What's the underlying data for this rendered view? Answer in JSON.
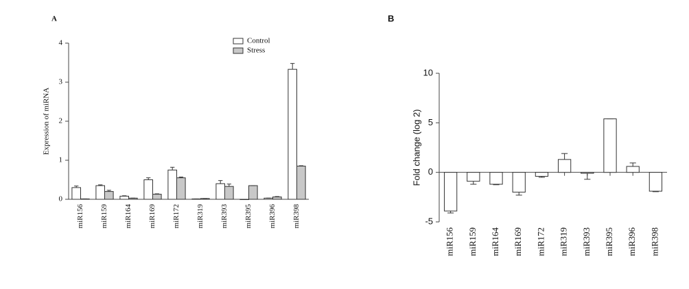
{
  "chart_data": [
    {
      "type": "bar",
      "label": "A",
      "y_label": "Expression of miRNA",
      "categories": [
        "miR156",
        "miR159",
        "miR164",
        "miR169",
        "miR172",
        "miR319",
        "miR393",
        "miR395",
        "miR396",
        "miR398"
      ],
      "series": [
        {
          "name": "Control",
          "color": "#ffffff",
          "values": [
            0.3,
            0.35,
            0.08,
            0.5,
            0.75,
            0.01,
            0.4,
            0.0,
            0.03,
            3.33
          ],
          "errors": [
            0.04,
            0.02,
            0.01,
            0.05,
            0.07,
            0.0,
            0.08,
            0.0,
            0.0,
            0.15
          ]
        },
        {
          "name": "Stress",
          "color": "#c8c8c8",
          "values": [
            0.01,
            0.2,
            0.03,
            0.13,
            0.55,
            0.02,
            0.33,
            0.35,
            0.06,
            0.85
          ],
          "errors": [
            0.0,
            0.03,
            0.0,
            0.01,
            0.02,
            0.0,
            0.06,
            0.0,
            0.01,
            0.01
          ]
        }
      ],
      "ylim": [
        0,
        4
      ],
      "yticks": [
        0,
        1,
        2,
        3,
        4
      ],
      "legend": "top-right"
    },
    {
      "type": "bar",
      "label": "B",
      "y_label": "Fold change (log 2)",
      "categories": [
        "miR156",
        "miR159",
        "miR164",
        "miR169",
        "miR172",
        "miR319",
        "miR393",
        "miR395",
        "miR396",
        "miR398"
      ],
      "values": [
        -3.9,
        -0.9,
        -1.2,
        -2.0,
        -0.4,
        1.3,
        -0.1,
        5.4,
        0.6,
        -1.9
      ],
      "errors": [
        0.2,
        0.3,
        0.05,
        0.3,
        0.1,
        0.6,
        0.6,
        0.0,
        0.35,
        0.05
      ],
      "color": "#ffffff",
      "ylim": [
        -5,
        10
      ],
      "yticks": [
        -5,
        0,
        5,
        10
      ]
    }
  ]
}
